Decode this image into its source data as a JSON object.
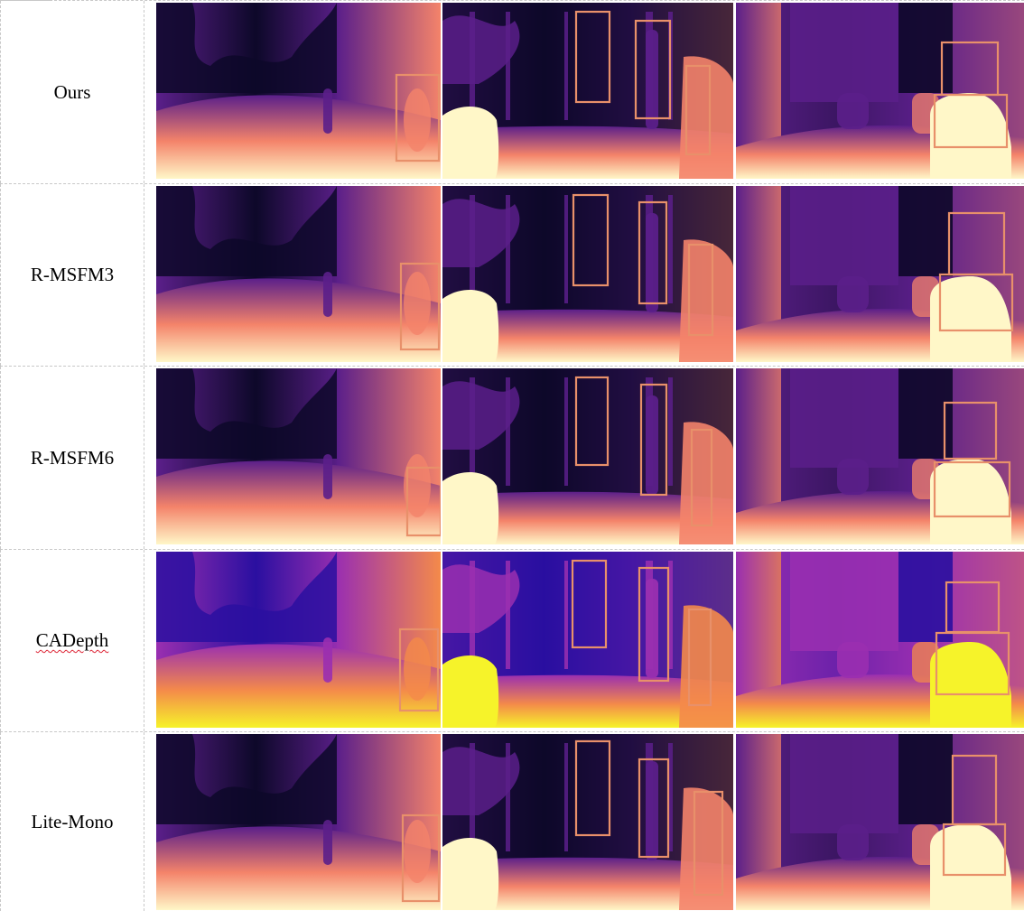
{
  "rows": [
    {
      "label": "Ours",
      "palette": "magma",
      "underline": false
    },
    {
      "label": "R-MSFM3",
      "palette": "magma",
      "underline": false
    },
    {
      "label": "R-MSFM6",
      "palette": "magma",
      "underline": false
    },
    {
      "label": "CADepth",
      "palette": "plasma",
      "underline": true
    },
    {
      "label": "Lite-Mono",
      "palette": "magma",
      "underline": false
    }
  ],
  "columns": [
    {
      "scene": "street-person-right"
    },
    {
      "scene": "street-car-left-poles"
    },
    {
      "scene": "street-car-right-box"
    }
  ],
  "colors": {
    "magma_far": "#0d0829",
    "magma_mid": "#5b1f8a",
    "magma_near": "#f4836a",
    "magma_closest": "#fff7c8",
    "plasma_far": "#2a0fa0",
    "plasma_mid": "#9a2fb0",
    "plasma_near": "#f48a4a",
    "plasma_closest": "#f6f32a",
    "box_stroke": "#e8906a"
  }
}
